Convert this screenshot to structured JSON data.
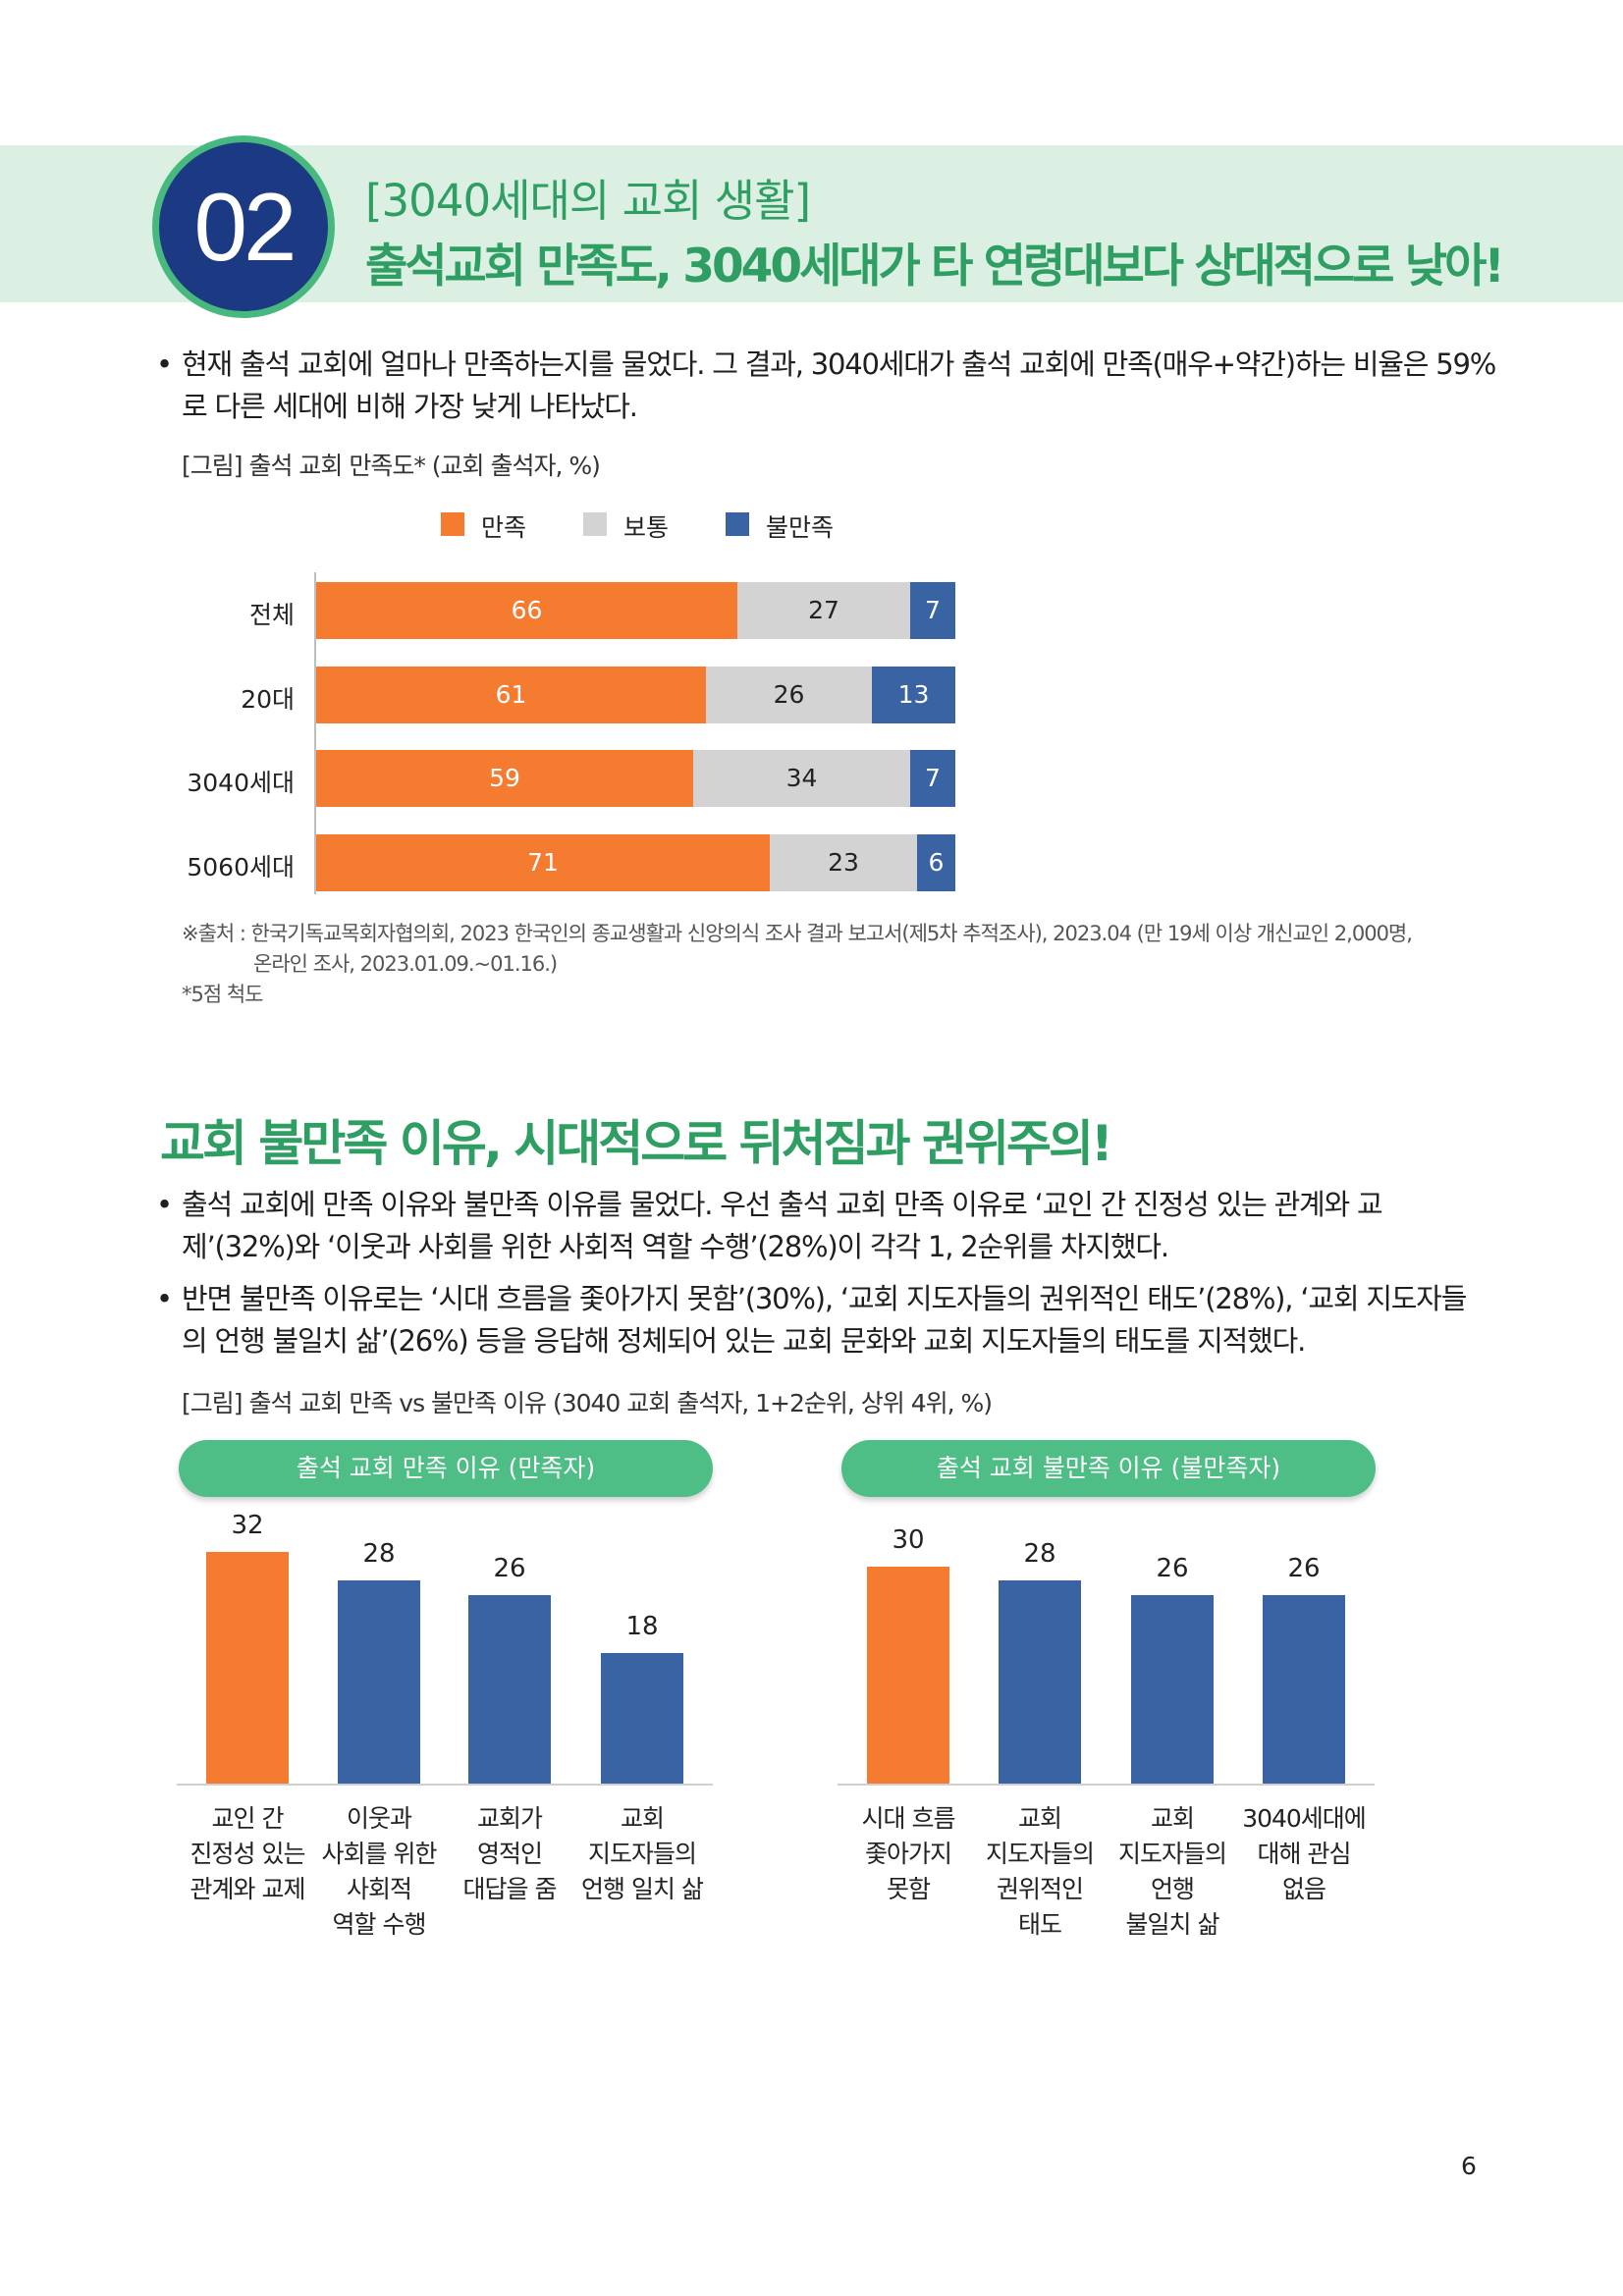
{
  "header": {
    "number": "02",
    "kicker": "[3040세대의 교회 생활]",
    "title": "출석교회 만족도, 3040세대가 타 연령대보다 상대적으로 낮아!"
  },
  "section1": {
    "bullet_line1": "현재 출석 교회에 얼마나 만족하는지를 물었다. 그 결과, 3040세대가 출석 교회에 만족(매우+약간)하는 비율은 59%",
    "bullet_line2": "로 다른 세대에 비해 가장 낮게 나타났다.",
    "figure_caption": "[그림] 출석 교회 만족도* (교회 출석자, %)",
    "source_line1": "※출처 : 한국기독교목회자협의회, 2023 한국인의 종교생활과 신앙의식 조사 결과 보고서(제5차 추적조사), 2023.04 (만 19세 이상 개신교인 2,000명,",
    "source_line2": "온라인 조사, 2023.01.09.~01.16.)",
    "footnote": "*5점 척도"
  },
  "section2": {
    "title": "교회 불만족 이유, 시대적으로 뒤처짐과 권위주의!",
    "bullet1_line1": "출석 교회에 만족 이유와 불만족 이유를 물었다. 우선 출석 교회 만족 이유로 ‘교인 간 진정성 있는 관계와 교",
    "bullet1_line2": "제’(32%)와 ‘이웃과 사회를 위한 사회적 역할 수행’(28%)이 각각 1, 2순위를 차지했다.",
    "bullet2_line1": "반면 불만족 이유로는 ‘시대 흐름을 좇아가지 못함’(30%), ‘교회 지도자들의 권위적인 태도’(28%), ‘교회 지도자들",
    "bullet2_line2": "의 언행 불일치 삶’(26%) 등을 응답해 정체되어 있는 교회 문화와 교회 지도자들의 태도를 지적했다.",
    "figure_caption": "[그림] 출석 교회 만족 vs 불만족 이유 (3040 교회 출석자, 1+2순위, 상위 4위, %)"
  },
  "page_number": "6",
  "chart_data": [
    {
      "type": "bar",
      "orientation": "horizontal",
      "stacked": true,
      "categories": [
        "전체",
        "20대",
        "3040세대",
        "5060세대"
      ],
      "series": [
        {
          "name": "만족",
          "values": [
            66,
            61,
            59,
            71
          ],
          "color": "#f47b30"
        },
        {
          "name": "보통",
          "values": [
            27,
            26,
            34,
            23
          ],
          "color": "#d3d3d3"
        },
        {
          "name": "불만족",
          "values": [
            7,
            13,
            7,
            6
          ],
          "color": "#3a63a4"
        }
      ],
      "legend": "top"
    },
    {
      "type": "bar",
      "title": "출석 교회 만족 이유 (만족자)",
      "categories": [
        "교인 간 진정성 있는 관계와 교제",
        "이웃과 사회를 위한 사회적 역할 수행",
        "교회가 영적인 대답을 줌",
        "교회 지도자들의 언행 일치 삶"
      ],
      "category_lines": [
        [
          "교인 간",
          "진정성 있는",
          "관계와 교제"
        ],
        [
          "이웃과",
          "사회를 위한",
          "사회적",
          "역할 수행"
        ],
        [
          "교회가",
          "영적인",
          "대답을 줌"
        ],
        [
          "교회",
          "지도자들의",
          "언행 일치 삶"
        ]
      ],
      "values": [
        32,
        28,
        26,
        18
      ],
      "colors": [
        "#f47b30",
        "#3a63a4",
        "#3a63a4",
        "#3a63a4"
      ],
      "ylim": [
        0,
        32
      ]
    },
    {
      "type": "bar",
      "title": "출석 교회 불만족 이유 (불만족자)",
      "categories": [
        "시대 흐름 좇아가지 못함",
        "교회 지도자들의 권위적인 태도",
        "교회 지도자들의 언행 불일치 삶",
        "3040세대에 대해 관심 없음"
      ],
      "category_lines": [
        [
          "시대 흐름",
          "좇아가지",
          "못함"
        ],
        [
          "교회",
          "지도자들의",
          "권위적인",
          "태도"
        ],
        [
          "교회",
          "지도자들의",
          "언행",
          "불일치 삶"
        ],
        [
          "3040세대에",
          "대해 관심",
          "없음"
        ]
      ],
      "values": [
        30,
        28,
        26,
        26
      ],
      "colors": [
        "#f47b30",
        "#3a63a4",
        "#3a63a4",
        "#3a63a4"
      ],
      "ylim": [
        0,
        32
      ]
    }
  ]
}
